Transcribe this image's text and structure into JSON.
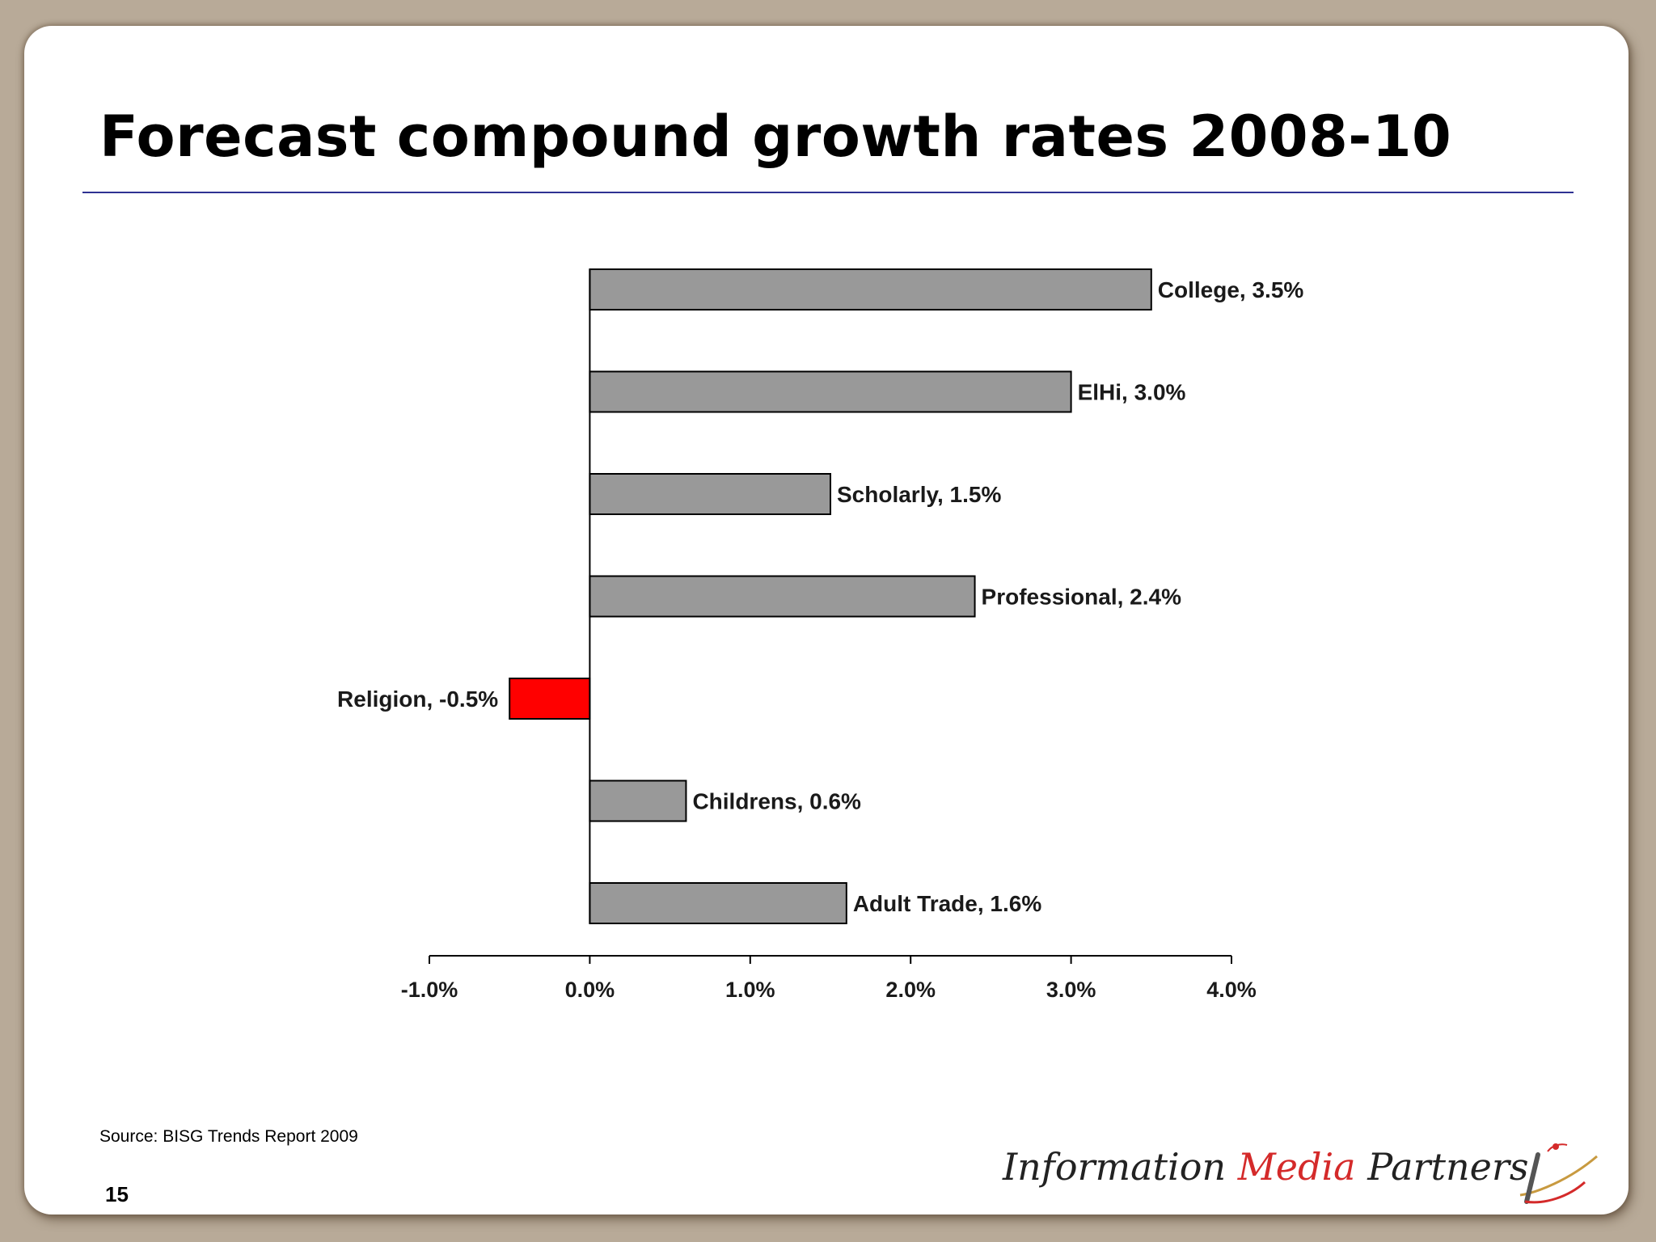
{
  "slide": {
    "title": "Forecast compound growth rates 2008-10",
    "source": "Source: BISG Trends Report 2009",
    "page_number": "15"
  },
  "logo": {
    "word1": "Information",
    "word2": "Media",
    "word3": "Partners",
    "colors": {
      "text": "#222222",
      "accent": "#d42a2a"
    }
  },
  "chart_data": {
    "type": "bar",
    "orientation": "horizontal",
    "categories": [
      "College",
      "ElHi",
      "Scholarly",
      "Professional",
      "Religion",
      "Childrens",
      "Adult Trade"
    ],
    "values": [
      3.5,
      3.0,
      1.5,
      2.4,
      -0.5,
      0.6,
      1.6
    ],
    "data_labels": [
      "College, 3.5%",
      "ElHi, 3.0%",
      "Scholarly, 1.5%",
      "Professional, 2.4%",
      "Religion, -0.5%",
      "Childrens, 0.6%",
      "Adult Trade, 1.6%"
    ],
    "xlim": [
      -1.0,
      4.0
    ],
    "x_ticks": [
      -1.0,
      0.0,
      1.0,
      2.0,
      3.0,
      4.0
    ],
    "x_tick_labels": [
      "-1.0%",
      "0.0%",
      "1.0%",
      "2.0%",
      "3.0%",
      "4.0%"
    ],
    "title": "",
    "xlabel": "",
    "ylabel": "",
    "grid": false,
    "legend": "none",
    "colors": {
      "positive": "#999999",
      "negative": "#ff0000",
      "outline": "#000000"
    }
  }
}
